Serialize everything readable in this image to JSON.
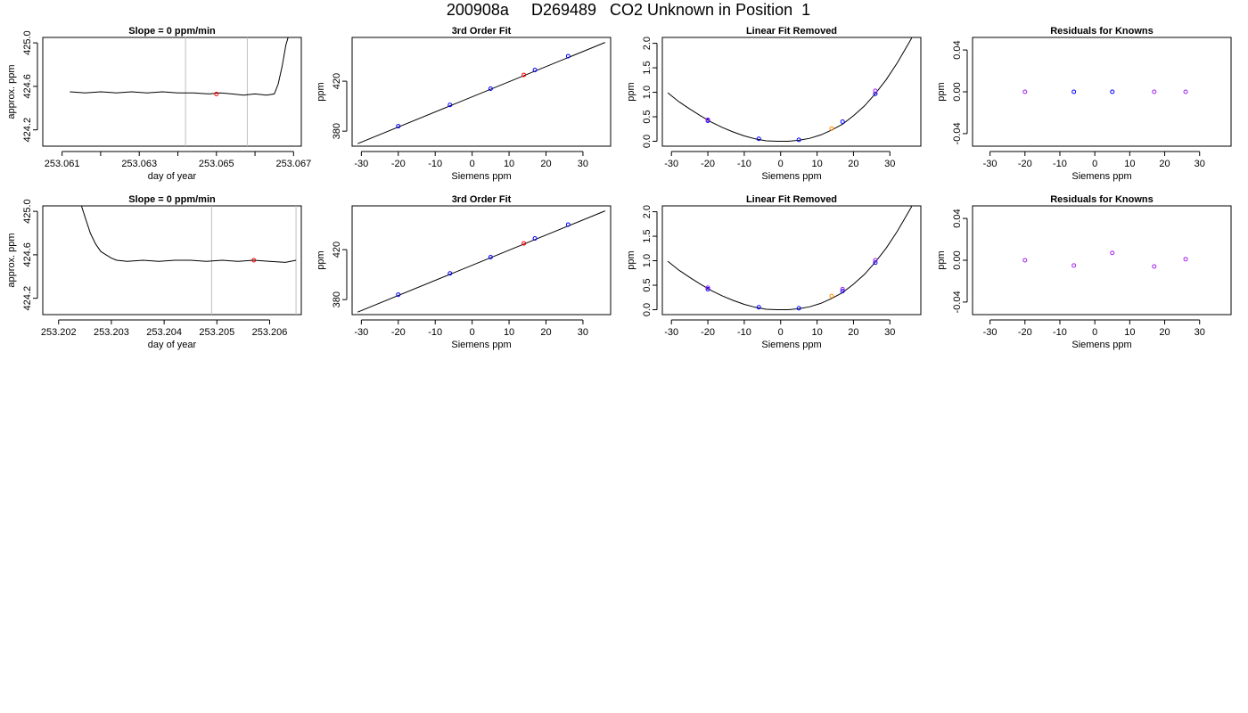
{
  "page_title": "200908a     D269489   CO2 Unknown in Position  1",
  "colors": {
    "trace": "#000000",
    "vline": "#bebebe",
    "marker_red": "#ff0000",
    "marker_blue": "#0000ff",
    "marker_purple": "#a020f0",
    "marker_orange": "#ff8c00"
  },
  "chart_data": [
    {
      "type": "line",
      "title": "Slope =  0  ppm/min",
      "xlabel": "day of year",
      "ylabel": "approx. ppm",
      "xlim": [
        253.0605,
        253.0672
      ],
      "ylim": [
        424.05,
        425.05
      ],
      "xticks": [
        253.061,
        253.062,
        253.063,
        253.064,
        253.065,
        253.066,
        253.067
      ],
      "xtick_labels": [
        "253.061",
        "",
        "253.063",
        "",
        "253.065",
        "",
        "253.067"
      ],
      "yticks": [
        424.2,
        424.6,
        425.0
      ],
      "ytick_labels": [
        "424.2",
        "424.6",
        "425.0"
      ],
      "vlines": [
        253.0642,
        253.0658
      ],
      "series": [
        {
          "x": [
            253.0612,
            253.0616,
            253.062,
            253.0624,
            253.0628,
            253.0632,
            253.0636,
            253.064,
            253.0644,
            253.0648,
            253.0651,
            253.0654,
            253.0657,
            253.066,
            253.0663,
            253.0665,
            253.0666,
            253.0667,
            253.0668,
            253.0669
          ],
          "y": [
            424.55,
            424.54,
            424.55,
            424.54,
            424.55,
            424.54,
            424.55,
            424.54,
            424.54,
            424.53,
            424.54,
            424.53,
            424.52,
            424.53,
            424.52,
            424.53,
            424.62,
            424.78,
            424.98,
            425.1
          ]
        }
      ],
      "markers": [
        {
          "x": 253.065,
          "y": 424.53,
          "color": "red"
        }
      ]
    },
    {
      "type": "scatter",
      "title": "3rd Order Fit",
      "xlabel": "Siemens ppm",
      "ylabel": "ppm",
      "xlim": [
        -32.5,
        37.5
      ],
      "ylim": [
        368,
        455
      ],
      "xticks": [
        -30,
        -20,
        -10,
        0,
        10,
        20,
        30
      ],
      "xtick_labels": [
        "-30",
        "-20",
        "-10",
        "0",
        "10",
        "20",
        "30"
      ],
      "yticks": [
        380,
        420
      ],
      "ytick_labels": [
        "380",
        "420"
      ],
      "fit_line": {
        "x": [
          -31,
          36
        ],
        "y": [
          370,
          451
        ]
      },
      "points": [
        {
          "x": -20,
          "y": 384,
          "color": "blue"
        },
        {
          "x": -6,
          "y": 401,
          "color": "blue"
        },
        {
          "x": 5,
          "y": 414,
          "color": "blue"
        },
        {
          "x": 17,
          "y": 429,
          "color": "blue"
        },
        {
          "x": 26,
          "y": 440,
          "color": "blue"
        },
        {
          "x": 14,
          "y": 425,
          "color": "red"
        }
      ]
    },
    {
      "type": "scatter",
      "title": "Linear Fit Removed",
      "xlabel": "Siemens ppm",
      "ylabel": "ppm",
      "xlim": [
        -32.5,
        38.5
      ],
      "ylim": [
        -0.1,
        2.12
      ],
      "xticks": [
        -30,
        -20,
        -10,
        0,
        10,
        20,
        30
      ],
      "xtick_labels": [
        "-30",
        "-20",
        "-10",
        "0",
        "10",
        "20",
        "30"
      ],
      "yticks": [
        0.0,
        0.5,
        1.0,
        1.5,
        2.0
      ],
      "ytick_labels": [
        "0.0",
        "0.5",
        "1.0",
        "1.5",
        "2.0"
      ],
      "curve": {
        "x": [
          -31,
          -28,
          -25,
          -22,
          -19,
          -16,
          -13,
          -10,
          -7,
          -4,
          -1,
          0,
          2,
          5,
          8,
          11,
          14,
          17,
          20,
          23,
          26,
          29,
          32,
          34,
          36
        ],
        "y": [
          0.99,
          0.81,
          0.66,
          0.52,
          0.39,
          0.28,
          0.19,
          0.11,
          0.05,
          0.01,
          0.0,
          0.0,
          0.0,
          0.02,
          0.06,
          0.13,
          0.23,
          0.35,
          0.52,
          0.72,
          0.97,
          1.26,
          1.6,
          1.85,
          2.11
        ]
      },
      "points": [
        {
          "x": -20,
          "y": 0.42,
          "color": "blue"
        },
        {
          "x": -20,
          "y": 0.44,
          "color": "purple"
        },
        {
          "x": -6,
          "y": 0.05,
          "color": "blue"
        },
        {
          "x": 5,
          "y": 0.03,
          "color": "blue"
        },
        {
          "x": 17,
          "y": 0.4,
          "color": "blue"
        },
        {
          "x": 26,
          "y": 0.97,
          "color": "blue"
        },
        {
          "x": 26,
          "y": 1.03,
          "color": "purple"
        },
        {
          "x": 14,
          "y": 0.26,
          "color": "orange"
        }
      ]
    },
    {
      "type": "scatter",
      "title": "Residuals for Knowns",
      "xlabel": "Siemens ppm",
      "ylabel": "ppm",
      "xlim": [
        -35,
        39
      ],
      "ylim": [
        -0.052,
        0.052
      ],
      "xticks": [
        -30,
        -20,
        -10,
        0,
        10,
        20,
        30
      ],
      "xtick_labels": [
        "-30",
        "-20",
        "-10",
        "0",
        "10",
        "20",
        "30"
      ],
      "yticks": [
        -0.04,
        0.0,
        0.04
      ],
      "ytick_labels": [
        "-0.04",
        "0.00",
        "0.04"
      ],
      "points": [
        {
          "x": -20,
          "y": 0.0,
          "color": "purple"
        },
        {
          "x": -6,
          "y": 0.0,
          "color": "blue"
        },
        {
          "x": 5,
          "y": 0.0,
          "color": "blue"
        },
        {
          "x": 17,
          "y": 0.0,
          "color": "purple"
        },
        {
          "x": 26,
          "y": 0.0,
          "color": "purple"
        }
      ]
    },
    {
      "type": "line",
      "title": "Slope =  0  ppm/min",
      "xlabel": "day of year",
      "ylabel": "approx. ppm",
      "xlim": [
        253.2017,
        253.2066
      ],
      "ylim": [
        424.05,
        425.05
      ],
      "xticks": [
        253.202,
        253.203,
        253.204,
        253.205,
        253.206
      ],
      "xtick_labels": [
        "253.202",
        "253.203",
        "253.204",
        "253.205",
        "253.206"
      ],
      "yticks": [
        424.2,
        424.6,
        425.0
      ],
      "ytick_labels": [
        "424.2",
        "424.6",
        "425.0"
      ],
      "vlines": [
        253.2049,
        253.2065
      ],
      "series": [
        {
          "x": [
            253.2024,
            253.2025,
            253.2026,
            253.2027,
            253.2028,
            253.2029,
            253.203,
            253.2031,
            253.2033,
            253.2036,
            253.2039,
            253.2042,
            253.2045,
            253.2048,
            253.2051,
            253.2054,
            253.2057,
            253.206,
            253.2063,
            253.2065
          ],
          "y": [
            425.1,
            424.95,
            424.8,
            424.7,
            424.63,
            424.6,
            424.57,
            424.55,
            424.54,
            424.55,
            424.54,
            424.55,
            424.55,
            424.54,
            424.55,
            424.54,
            424.55,
            424.54,
            424.53,
            424.55
          ]
        }
      ],
      "markers": [
        {
          "x": 253.2057,
          "y": 424.55,
          "color": "red"
        }
      ]
    },
    {
      "type": "scatter",
      "title": "3rd Order Fit",
      "xlabel": "Siemens ppm",
      "ylabel": "ppm",
      "xlim": [
        -32.5,
        37.5
      ],
      "ylim": [
        368,
        455
      ],
      "xticks": [
        -30,
        -20,
        -10,
        0,
        10,
        20,
        30
      ],
      "xtick_labels": [
        "-30",
        "-20",
        "-10",
        "0",
        "10",
        "20",
        "30"
      ],
      "yticks": [
        380,
        420
      ],
      "ytick_labels": [
        "380",
        "420"
      ],
      "fit_line": {
        "x": [
          -31,
          36
        ],
        "y": [
          370,
          451
        ]
      },
      "points": [
        {
          "x": -20,
          "y": 384,
          "color": "blue"
        },
        {
          "x": -6,
          "y": 401,
          "color": "blue"
        },
        {
          "x": 5,
          "y": 414,
          "color": "blue"
        },
        {
          "x": 17,
          "y": 429,
          "color": "blue"
        },
        {
          "x": 26,
          "y": 440,
          "color": "blue"
        },
        {
          "x": 14,
          "y": 425,
          "color": "red"
        }
      ]
    },
    {
      "type": "scatter",
      "title": "Linear Fit Removed",
      "xlabel": "Siemens ppm",
      "ylabel": "ppm",
      "xlim": [
        -32.5,
        38.5
      ],
      "ylim": [
        -0.1,
        2.12
      ],
      "xticks": [
        -30,
        -20,
        -10,
        0,
        10,
        20,
        30
      ],
      "xtick_labels": [
        "-30",
        "-20",
        "-10",
        "0",
        "10",
        "20",
        "30"
      ],
      "yticks": [
        0.0,
        0.5,
        1.0,
        1.5,
        2.0
      ],
      "ytick_labels": [
        "0.0",
        "0.5",
        "1.0",
        "1.5",
        "2.0"
      ],
      "curve": {
        "x": [
          -31,
          -28,
          -25,
          -22,
          -19,
          -16,
          -13,
          -10,
          -7,
          -4,
          -1,
          0,
          2,
          5,
          8,
          11,
          14,
          17,
          20,
          23,
          26,
          29,
          32,
          34,
          36
        ],
        "y": [
          0.99,
          0.81,
          0.66,
          0.52,
          0.39,
          0.28,
          0.19,
          0.11,
          0.05,
          0.01,
          0.0,
          0.0,
          0.0,
          0.02,
          0.06,
          0.13,
          0.23,
          0.35,
          0.52,
          0.72,
          0.97,
          1.26,
          1.6,
          1.85,
          2.11
        ]
      },
      "points": [
        {
          "x": -20,
          "y": 0.42,
          "color": "blue"
        },
        {
          "x": -20,
          "y": 0.45,
          "color": "purple"
        },
        {
          "x": -6,
          "y": 0.05,
          "color": "blue"
        },
        {
          "x": 5,
          "y": 0.03,
          "color": "blue"
        },
        {
          "x": 17,
          "y": 0.38,
          "color": "blue"
        },
        {
          "x": 17,
          "y": 0.42,
          "color": "purple"
        },
        {
          "x": 26,
          "y": 0.96,
          "color": "blue"
        },
        {
          "x": 26,
          "y": 1.01,
          "color": "purple"
        },
        {
          "x": 14,
          "y": 0.28,
          "color": "orange"
        }
      ]
    },
    {
      "type": "scatter",
      "title": "Residuals for Knowns",
      "xlabel": "Siemens ppm",
      "ylabel": "ppm",
      "xlim": [
        -35,
        39
      ],
      "ylim": [
        -0.052,
        0.052
      ],
      "xticks": [
        -30,
        -20,
        -10,
        0,
        10,
        20,
        30
      ],
      "xtick_labels": [
        "-30",
        "-20",
        "-10",
        "0",
        "10",
        "20",
        "30"
      ],
      "yticks": [
        -0.04,
        0.0,
        0.04
      ],
      "ytick_labels": [
        "-0.04",
        "0.00",
        "0.04"
      ],
      "points": [
        {
          "x": -20,
          "y": 0.0,
          "color": "purple"
        },
        {
          "x": -6,
          "y": -0.005,
          "color": "purple"
        },
        {
          "x": 5,
          "y": 0.007,
          "color": "purple"
        },
        {
          "x": 17,
          "y": -0.006,
          "color": "purple"
        },
        {
          "x": 26,
          "y": 0.001,
          "color": "purple"
        }
      ]
    }
  ]
}
